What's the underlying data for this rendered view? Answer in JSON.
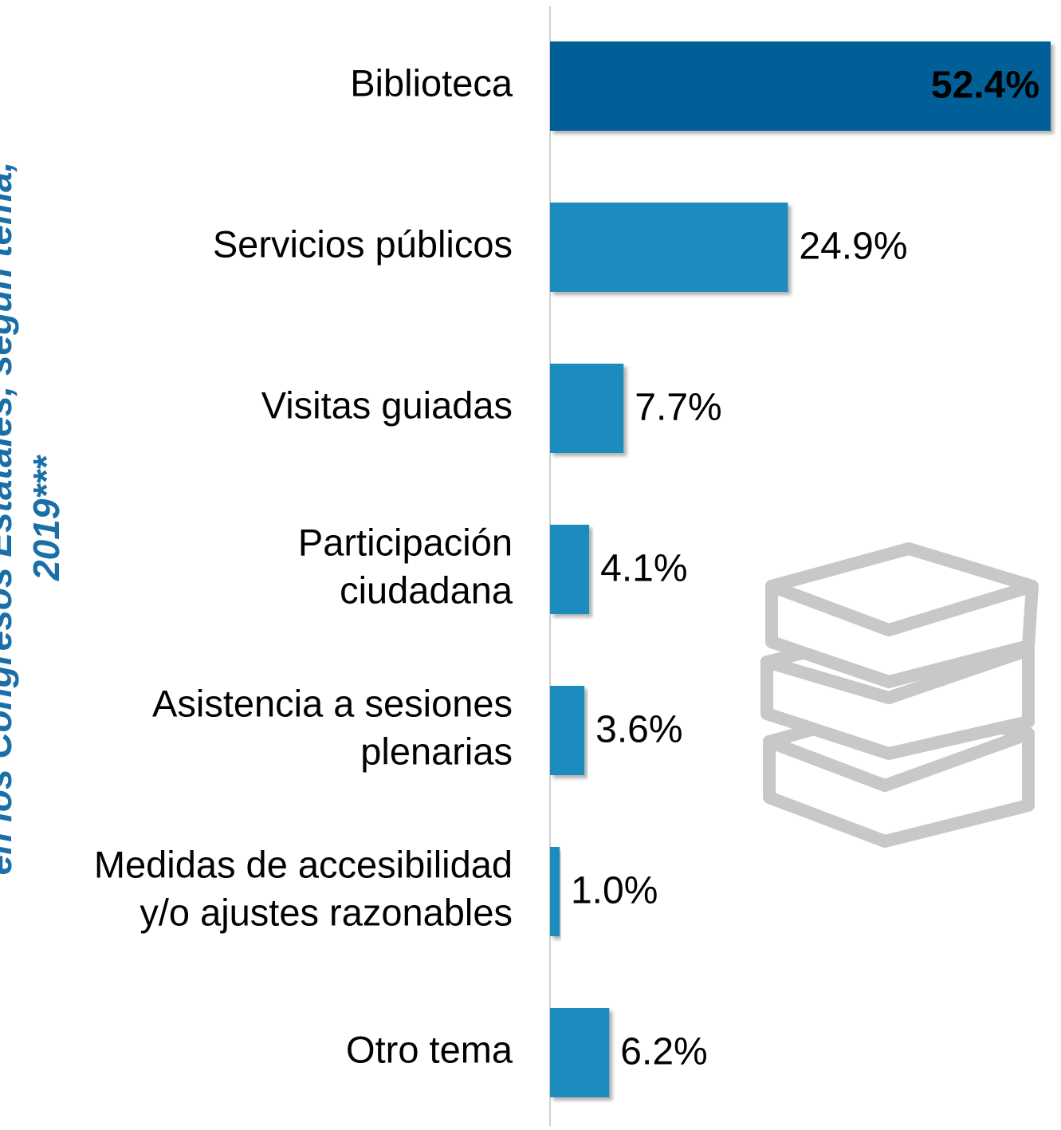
{
  "chart_data": {
    "type": "barh",
    "title": [
      "en los Congresos Estatales, según tema,",
      "2019***"
    ],
    "categories": [
      [
        "Biblioteca"
      ],
      [
        "Servicios públicos"
      ],
      [
        "Visitas guiadas"
      ],
      [
        "Participación",
        "ciudadana"
      ],
      [
        "Asistencia a sesiones",
        "plenarias"
      ],
      [
        "Medidas de accesibilidad",
        "y/o ajustes razonables"
      ],
      [
        "Otro tema"
      ]
    ],
    "values": [
      52.4,
      24.9,
      7.7,
      4.1,
      3.6,
      1.0,
      6.2
    ],
    "value_labels": [
      "52.4%",
      "24.9%",
      "7.7%",
      "4.1%",
      "3.6%",
      "1.0%",
      "6.2%"
    ],
    "colors": [
      "#005f96",
      "#1a8bbd",
      "#1a8bbd",
      "#1a8bbd",
      "#1a8bbd",
      "#1a8bbd",
      "#1a8bbd"
    ],
    "xlim": [
      0,
      52.4
    ]
  }
}
